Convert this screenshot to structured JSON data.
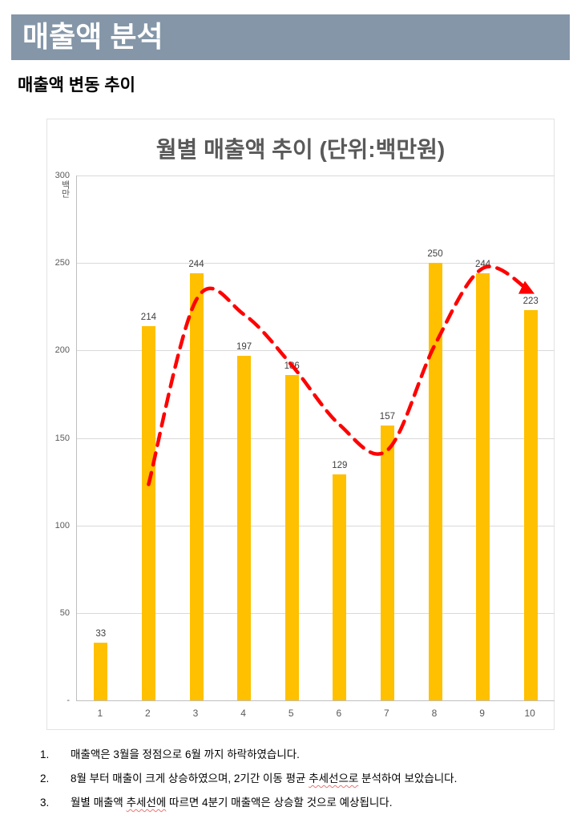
{
  "page": {
    "header_title": "매출액 분석",
    "subtitle": "매출액 변동 추이"
  },
  "colors": {
    "header_bg": "#8496A8",
    "bar": "#FFC000",
    "trend_line": "#FF0000"
  },
  "chart_data": {
    "type": "bar",
    "title": "월별 매출액 추이 (단위:백만원)",
    "xlabel": "",
    "ylabel": "백만",
    "categories": [
      "1",
      "2",
      "3",
      "4",
      "5",
      "6",
      "7",
      "8",
      "9",
      "10"
    ],
    "series": [
      {
        "name": "월별 매출액",
        "type": "bar",
        "color": "#FFC000",
        "values": [
          33,
          214,
          244,
          197,
          186,
          129,
          157,
          250,
          244,
          223
        ]
      },
      {
        "name": "2기간 이동 평균 추세선",
        "type": "line",
        "style": "dashed",
        "color": "#FF0000",
        "arrow_end": true,
        "values": [
          null,
          123.5,
          229,
          220.5,
          191.5,
          157.5,
          143,
          203.5,
          247,
          233.5
        ]
      }
    ],
    "ylim": [
      0,
      300
    ],
    "yticks": [
      {
        "value": 300,
        "label": "300"
      },
      {
        "value": 250,
        "label": "250"
      },
      {
        "value": 200,
        "label": "200"
      },
      {
        "value": 150,
        "label": "150"
      },
      {
        "value": 100,
        "label": "100"
      },
      {
        "value": 50,
        "label": "50"
      },
      {
        "value": 0,
        "label": "-"
      }
    ],
    "grid": true,
    "legend": "none",
    "data_labels": [
      33,
      214,
      244,
      197,
      186,
      129,
      157,
      250,
      244,
      223
    ]
  },
  "notes": [
    {
      "num": "1.",
      "segments": [
        {
          "t": "매출액은 3월을 정점으로 6월 까지 하락하였습니다."
        }
      ]
    },
    {
      "num": "2.",
      "segments": [
        {
          "t": "8월 부터 매출이 크게 상승하였으며, 2기간 이동 평균 "
        },
        {
          "t": "추세선으로",
          "wavy": true
        },
        {
          "t": " 분석하여 보았습니다."
        }
      ]
    },
    {
      "num": "3.",
      "segments": [
        {
          "t": "월별 매출액 "
        },
        {
          "t": "추세선에",
          "wavy": true
        },
        {
          "t": " 따르면 4분기 매출액은 상승할 것으로 예상됩니다."
        }
      ]
    }
  ]
}
